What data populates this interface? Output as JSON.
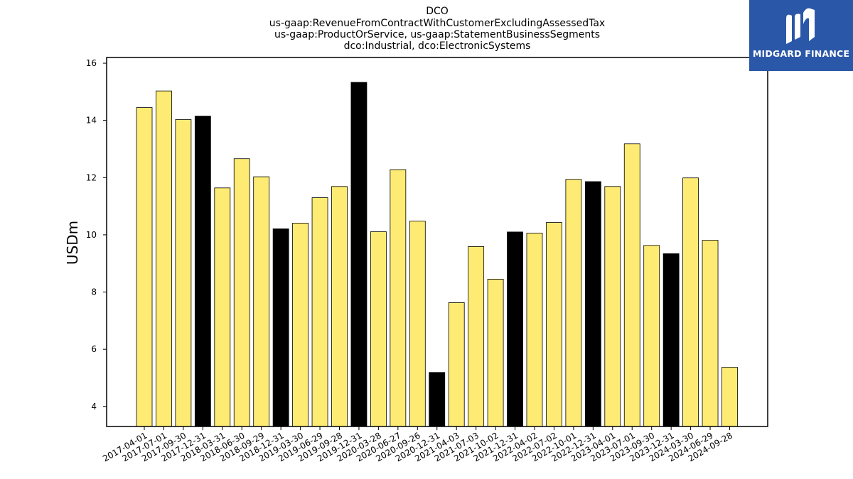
{
  "chart_data": {
    "type": "bar",
    "title_lines": [
      "DCO",
      "us-gaap:RevenueFromContractWithCustomerExcludingAssessedTax",
      "us-gaap:ProductOrService, us-gaap:StatementBusinessSegments",
      "dco:Industrial, dco:ElectronicSystems"
    ],
    "ylabel": "USDm",
    "xlabel": "",
    "ylim": [
      3.3,
      16.2
    ],
    "yticks": [
      4,
      6,
      8,
      10,
      12,
      14,
      16
    ],
    "categories": [
      "2017-04-01",
      "2017-07-01",
      "2017-09-30",
      "2017-12-31",
      "2018-03-31",
      "2018-06-30",
      "2018-09-29",
      "2018-12-31",
      "2019-03-30",
      "2019-06-29",
      "2019-09-28",
      "2019-12-31",
      "2020-03-28",
      "2020-06-27",
      "2020-09-26",
      "2020-12-31",
      "2021-04-03",
      "2021-07-03",
      "2021-10-02",
      "2021-12-31",
      "2022-04-02",
      "2022-07-02",
      "2022-10-01",
      "2022-12-31",
      "2023-04-01",
      "2023-07-01",
      "2023-09-30",
      "2023-12-31",
      "2024-03-30",
      "2024-06-29",
      "2024-09-28"
    ],
    "values": [
      14.45,
      15.03,
      14.03,
      14.15,
      11.64,
      12.66,
      12.03,
      10.21,
      10.41,
      11.3,
      11.69,
      15.33,
      10.11,
      12.28,
      10.48,
      5.19,
      7.63,
      9.59,
      8.45,
      10.1,
      10.06,
      10.43,
      11.94,
      11.86,
      11.69,
      13.18,
      9.63,
      9.34,
      11.99,
      9.81,
      5.37
    ],
    "bar_colors": [
      "yellow",
      "yellow",
      "yellow",
      "black",
      "yellow",
      "yellow",
      "yellow",
      "black",
      "yellow",
      "yellow",
      "yellow",
      "black",
      "yellow",
      "yellow",
      "yellow",
      "black",
      "yellow",
      "yellow",
      "yellow",
      "black",
      "yellow",
      "yellow",
      "yellow",
      "black",
      "yellow",
      "yellow",
      "yellow",
      "black",
      "yellow",
      "yellow",
      "yellow"
    ],
    "colors": {
      "yellow": "#feeb74",
      "black": "#000000",
      "edge": "#000000"
    },
    "grid": false,
    "legend": "none"
  },
  "logo": {
    "text": "MIDGARD FINANCE",
    "background": "#2b57a8"
  }
}
